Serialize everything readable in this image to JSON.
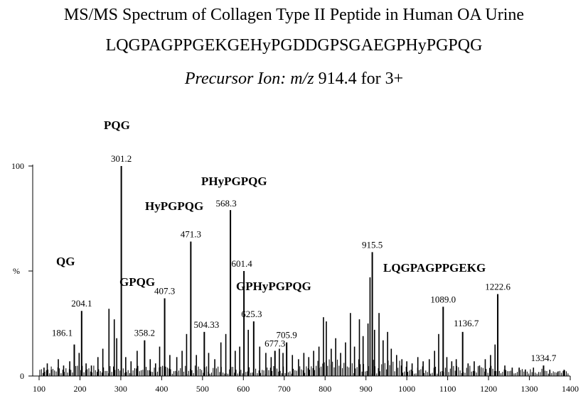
{
  "title": "MS/MS Spectrum of Collagen Type II Peptide in Human OA Urine",
  "sequence": "LQGPAGPPGEKGEHyPGDDGPSGAEGPHyPGPQG",
  "precursor": {
    "prefix": "Precursor Ion: ",
    "mz_label": "m/z",
    "value_text": " 914.4 for 3+"
  },
  "chart_data": {
    "type": "bar",
    "xlim": [
      100,
      1400
    ],
    "ylim": [
      0,
      100
    ],
    "x_ticks": [
      100,
      200,
      300,
      400,
      500,
      600,
      700,
      800,
      900,
      1000,
      1100,
      1200,
      1300,
      1400
    ],
    "y_ticks": [
      {
        "label": "0",
        "value": 0
      },
      {
        "label": "%",
        "value": 50
      },
      {
        "label": "100",
        "value": 100
      }
    ],
    "labeled_peaks": [
      {
        "mz": 186.1,
        "label": "186.1",
        "intensity": 15
      },
      {
        "mz": 204.1,
        "label": "204.1",
        "intensity": 31
      },
      {
        "mz": 301.2,
        "label": "301.2",
        "intensity": 100
      },
      {
        "mz": 358.2,
        "label": "358.2",
        "intensity": 17
      },
      {
        "mz": 407.3,
        "label": "407.3",
        "intensity": 37
      },
      {
        "mz": 471.3,
        "label": "471.3",
        "intensity": 64
      },
      {
        "mz": 504.33,
        "label": "504.33",
        "intensity": 21
      },
      {
        "mz": 568.3,
        "label": "568.3",
        "intensity": 79
      },
      {
        "mz": 601.4,
        "label": "601.4",
        "intensity": 50
      },
      {
        "mz": 625.3,
        "label": "625.3",
        "intensity": 26
      },
      {
        "mz": 677.3,
        "label": "677.3",
        "intensity": 12
      },
      {
        "mz": 705.9,
        "label": "705.9",
        "intensity": 16
      },
      {
        "mz": 915.5,
        "label": "915.5",
        "intensity": 59
      },
      {
        "mz": 1089.0,
        "label": "1089.0",
        "intensity": 33
      },
      {
        "mz": 1136.7,
        "label": "1136.7",
        "intensity": 21
      },
      {
        "mz": 1222.6,
        "label": "1222.6",
        "intensity": 39
      },
      {
        "mz": 1334.7,
        "label": "1334.7",
        "intensity": 5
      }
    ],
    "minor_peaks": [
      {
        "mz": 112,
        "intensity": 4
      },
      {
        "mz": 120,
        "intensity": 6
      },
      {
        "mz": 130,
        "intensity": 3
      },
      {
        "mz": 147,
        "intensity": 8
      },
      {
        "mz": 160,
        "intensity": 5
      },
      {
        "mz": 175,
        "intensity": 7
      },
      {
        "mz": 198,
        "intensity": 11
      },
      {
        "mz": 215,
        "intensity": 6
      },
      {
        "mz": 228,
        "intensity": 5
      },
      {
        "mz": 244,
        "intensity": 9
      },
      {
        "mz": 256,
        "intensity": 13
      },
      {
        "mz": 271,
        "intensity": 32
      },
      {
        "mz": 284,
        "intensity": 27
      },
      {
        "mz": 290,
        "intensity": 18
      },
      {
        "mz": 312,
        "intensity": 9
      },
      {
        "mz": 325,
        "intensity": 7
      },
      {
        "mz": 340,
        "intensity": 12
      },
      {
        "mz": 372,
        "intensity": 8
      },
      {
        "mz": 385,
        "intensity": 6
      },
      {
        "mz": 395,
        "intensity": 14
      },
      {
        "mz": 420,
        "intensity": 10
      },
      {
        "mz": 437,
        "intensity": 9
      },
      {
        "mz": 450,
        "intensity": 12
      },
      {
        "mz": 461,
        "intensity": 20
      },
      {
        "mz": 485,
        "intensity": 10
      },
      {
        "mz": 515,
        "intensity": 11
      },
      {
        "mz": 530,
        "intensity": 8
      },
      {
        "mz": 545,
        "intensity": 16
      },
      {
        "mz": 557,
        "intensity": 20
      },
      {
        "mz": 580,
        "intensity": 12
      },
      {
        "mz": 591,
        "intensity": 14
      },
      {
        "mz": 612,
        "intensity": 22
      },
      {
        "mz": 640,
        "intensity": 14
      },
      {
        "mz": 655,
        "intensity": 11
      },
      {
        "mz": 668,
        "intensity": 9
      },
      {
        "mz": 688,
        "intensity": 13
      },
      {
        "mz": 697,
        "intensity": 11
      },
      {
        "mz": 720,
        "intensity": 10
      },
      {
        "mz": 735,
        "intensity": 8
      },
      {
        "mz": 748,
        "intensity": 11
      },
      {
        "mz": 760,
        "intensity": 9
      },
      {
        "mz": 772,
        "intensity": 12
      },
      {
        "mz": 785,
        "intensity": 14
      },
      {
        "mz": 796,
        "intensity": 28
      },
      {
        "mz": 803,
        "intensity": 26
      },
      {
        "mz": 815,
        "intensity": 13
      },
      {
        "mz": 826,
        "intensity": 18
      },
      {
        "mz": 838,
        "intensity": 11
      },
      {
        "mz": 850,
        "intensity": 16
      },
      {
        "mz": 862,
        "intensity": 30
      },
      {
        "mz": 872,
        "intensity": 14
      },
      {
        "mz": 884,
        "intensity": 27
      },
      {
        "mz": 893,
        "intensity": 19
      },
      {
        "mz": 905,
        "intensity": 25
      },
      {
        "mz": 910,
        "intensity": 47
      },
      {
        "mz": 921,
        "intensity": 22
      },
      {
        "mz": 932,
        "intensity": 30
      },
      {
        "mz": 942,
        "intensity": 17
      },
      {
        "mz": 953,
        "intensity": 21
      },
      {
        "mz": 962,
        "intensity": 13
      },
      {
        "mz": 975,
        "intensity": 10
      },
      {
        "mz": 988,
        "intensity": 8
      },
      {
        "mz": 1000,
        "intensity": 7
      },
      {
        "mz": 1013,
        "intensity": 6
      },
      {
        "mz": 1027,
        "intensity": 9
      },
      {
        "mz": 1040,
        "intensity": 7
      },
      {
        "mz": 1055,
        "intensity": 8
      },
      {
        "mz": 1068,
        "intensity": 12
      },
      {
        "mz": 1078,
        "intensity": 20
      },
      {
        "mz": 1098,
        "intensity": 9
      },
      {
        "mz": 1110,
        "intensity": 7
      },
      {
        "mz": 1121,
        "intensity": 8
      },
      {
        "mz": 1150,
        "intensity": 6
      },
      {
        "mz": 1165,
        "intensity": 7
      },
      {
        "mz": 1178,
        "intensity": 5
      },
      {
        "mz": 1192,
        "intensity": 8
      },
      {
        "mz": 1205,
        "intensity": 10
      },
      {
        "mz": 1216,
        "intensity": 15
      },
      {
        "mz": 1240,
        "intensity": 5
      },
      {
        "mz": 1258,
        "intensity": 4
      },
      {
        "mz": 1275,
        "intensity": 4
      },
      {
        "mz": 1290,
        "intensity": 3
      },
      {
        "mz": 1310,
        "intensity": 4
      },
      {
        "mz": 1350,
        "intensity": 3
      },
      {
        "mz": 1370,
        "intensity": 2
      },
      {
        "mz": 1385,
        "intensity": 3
      }
    ],
    "fragments": [
      {
        "label": "PQG"
      },
      {
        "label": "QG"
      },
      {
        "label": "GPQG"
      },
      {
        "label": "HyPGPQG"
      },
      {
        "label": "PHyPGPQG"
      },
      {
        "label": "GPHyPGPQG"
      },
      {
        "label": "LQGPAGPPGEKG"
      }
    ]
  }
}
